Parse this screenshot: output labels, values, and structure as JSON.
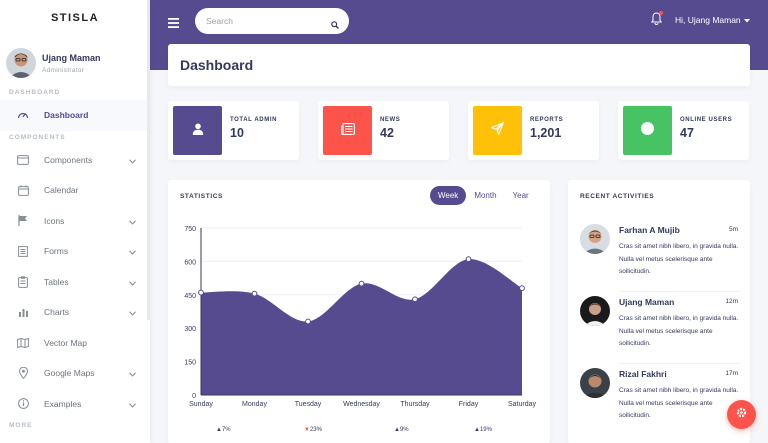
{
  "brand": "STISLA",
  "user": {
    "name": "Ujang Maman",
    "role": "Administrator"
  },
  "sidebar": {
    "header_dashboard": "DASHBOARD",
    "header_components": "COMPONENTS",
    "header_more": "MORE",
    "items": [
      {
        "label": "Dashboard",
        "icon": "gauge-icon",
        "active": true
      },
      {
        "label": "Components",
        "icon": "window-icon",
        "dropdown": true
      },
      {
        "label": "Calendar",
        "icon": "calendar-icon"
      },
      {
        "label": "Icons",
        "icon": "flag-icon",
        "dropdown": true
      },
      {
        "label": "Forms",
        "icon": "form-icon",
        "dropdown": true
      },
      {
        "label": "Tables",
        "icon": "clipboard-icon",
        "dropdown": true
      },
      {
        "label": "Charts",
        "icon": "bar-chart-icon",
        "dropdown": true
      },
      {
        "label": "Vector Map",
        "icon": "map-icon"
      },
      {
        "label": "Google Maps",
        "icon": "map-pin-icon",
        "dropdown": true
      },
      {
        "label": "Examples",
        "icon": "info-icon",
        "dropdown": true
      }
    ]
  },
  "navbar": {
    "search_placeholder": "Search",
    "greeting": "Hi, Ujang Maman"
  },
  "page_title": "Dashboard",
  "stats": [
    {
      "label": "TOTAL ADMIN",
      "value": "10",
      "color": "#574b90",
      "icon": "user-icon"
    },
    {
      "label": "NEWS",
      "value": "42",
      "color": "#fc544b",
      "icon": "newspaper-icon"
    },
    {
      "label": "REPORTS",
      "value": "1,201",
      "color": "#ffc107",
      "icon": "paper-plane-icon"
    },
    {
      "label": "ONLINE USERS",
      "value": "47",
      "color": "#47c363",
      "icon": "circle-icon"
    }
  ],
  "statistics": {
    "title": "STATISTICS",
    "tabs": [
      "Week",
      "Month",
      "Year"
    ],
    "active_tab": "Week",
    "summary": [
      {
        "change": "7%",
        "direction": "up"
      },
      {
        "change": "23%",
        "direction": "down"
      },
      {
        "change": "9%",
        "direction": "up"
      },
      {
        "change": "19%",
        "direction": "up"
      }
    ]
  },
  "chart_data": {
    "type": "area",
    "x": [
      "Sunday",
      "Monday",
      "Tuesday",
      "Wednesday",
      "Thursday",
      "Friday",
      "Saturday"
    ],
    "series": [
      {
        "values": [
          460,
          455,
          330,
          500,
          430,
          610,
          480
        ]
      }
    ],
    "ylim": [
      0,
      750
    ],
    "yticks": [
      0,
      150,
      300,
      450,
      600,
      750
    ],
    "color": "#574b90",
    "grid": true
  },
  "activities": {
    "title": "RECENT ACTIVITIES",
    "items": [
      {
        "name": "Farhan A Mujib",
        "time": "5m",
        "text": "Cras sit amet nibh libero, in gravida nulla. Nulla vel metus scelerisque ante sollicitudin."
      },
      {
        "name": "Ujang Maman",
        "time": "12m",
        "text": "Cras sit amet nibh libero, in gravida nulla. Nulla vel metus scelerisque ante sollicitudin."
      },
      {
        "name": "Rizal Fakhri",
        "time": "17m",
        "text": "Cras sit amet nibh libero, in gravida nulla. Nulla vel metus scelerisque ante sollicitudin."
      }
    ]
  },
  "colors": {
    "primary": "#574b90",
    "danger": "#fc544b",
    "warning": "#ffc107",
    "success": "#47c363"
  }
}
